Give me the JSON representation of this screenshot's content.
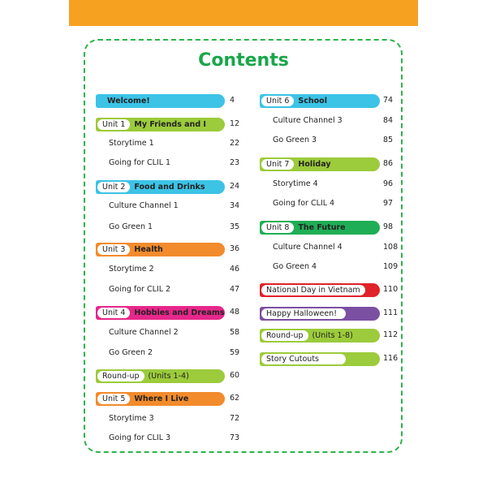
{
  "header": {
    "title": "Contents"
  },
  "left_column": {
    "entries": [
      {
        "title": "Welcome!",
        "page": 4,
        "color": "#3cc3e6"
      },
      {
        "pill": "Unit 1",
        "title": "My Friends and I",
        "page": 12,
        "color": "#9ccb3b"
      },
      {
        "title": "Storytime 1",
        "page": 22
      },
      {
        "title": "Going for CLIL 1",
        "page": 23
      },
      {
        "pill": "Unit 2",
        "title": "Food and Drinks",
        "page": 24,
        "color": "#3cc3e6"
      },
      {
        "title": "Culture Channel 1",
        "page": 34
      },
      {
        "title": "Go Green 1",
        "page": 35
      },
      {
        "pill": "Unit 3",
        "title": "Health",
        "page": 36,
        "color": "#f28b2c"
      },
      {
        "title": "Storytime 2",
        "page": 46
      },
      {
        "title": "Going for CLIL 2",
        "page": 47
      },
      {
        "pill": "Unit 4",
        "title": "Hobbies and Dreams",
        "page": 48,
        "color": "#e6278b"
      },
      {
        "title": "Culture Channel 2",
        "page": 58
      },
      {
        "title": "Go Green 2",
        "page": 59
      },
      {
        "pill": "Round-up",
        "title": "(Units 1-4)",
        "page": 60,
        "color": "#9ccb3b"
      },
      {
        "pill": "Unit 5",
        "title": "Where I Live",
        "page": 62,
        "color": "#f28b2c"
      },
      {
        "title": "Storytime 3",
        "page": 72
      },
      {
        "title": "Going for CLIL 3",
        "page": 73
      }
    ]
  },
  "right_column": {
    "entries": [
      {
        "pill": "Unit 6",
        "title": "School",
        "page": 74,
        "color": "#3cc3e6"
      },
      {
        "title": "Culture Channel 3",
        "page": 84
      },
      {
        "title": "Go Green 3",
        "page": 85
      },
      {
        "pill": "Unit 7",
        "title": "Holiday",
        "page": 86,
        "color": "#9ccb3b"
      },
      {
        "title": "Storytime 4",
        "page": 96
      },
      {
        "title": "Going for CLIL 4",
        "page": 97
      },
      {
        "pill": "Unit 8",
        "title": "The Future",
        "page": 98,
        "color": "#1fae55"
      },
      {
        "title": "Culture Channel 4",
        "page": 108
      },
      {
        "title": "Go Green 4",
        "page": 109
      },
      {
        "pill": "National Day in Vietnam",
        "page": 110,
        "color": "#e0222a"
      },
      {
        "pill": "Happy Halloween!",
        "page": 111,
        "color": "#7b4fa2"
      },
      {
        "pill": "Round-up",
        "title": "(Units 1-8)",
        "page": 112,
        "color": "#9ccb3b"
      },
      {
        "pill": "Story Cutouts",
        "page": 116,
        "color": "#9ccb3b"
      }
    ]
  }
}
